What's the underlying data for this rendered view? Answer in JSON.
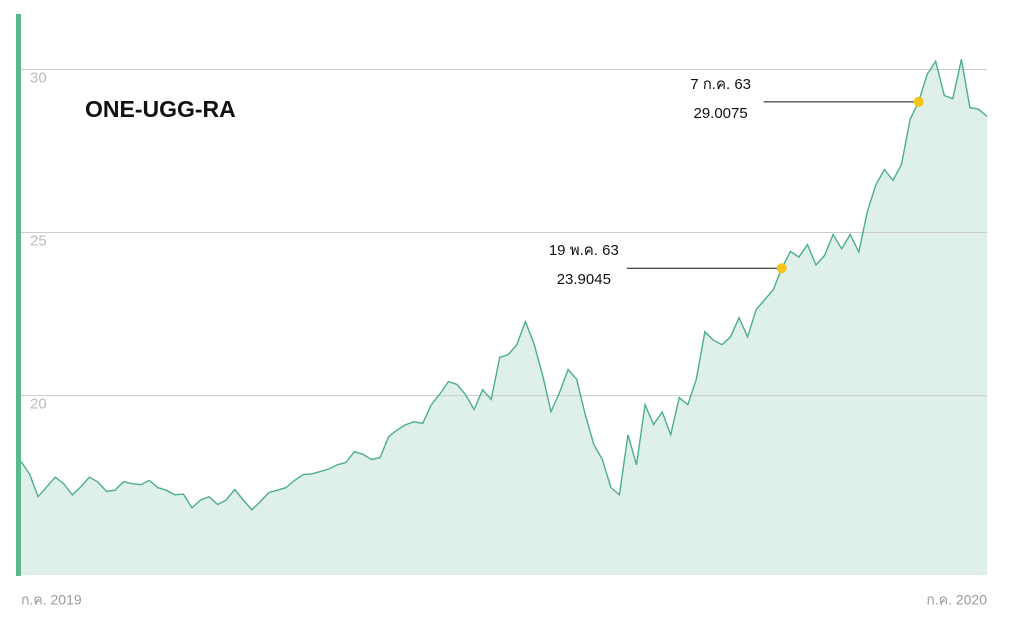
{
  "chart_data": {
    "type": "area",
    "title": "ONE-UGG-RA",
    "categories": [
      "ก.ค. 2019",
      null,
      null,
      null,
      null,
      null,
      null,
      null,
      null,
      null,
      null,
      null,
      null,
      null,
      null,
      null,
      null,
      null,
      null,
      null,
      null,
      null,
      null,
      null,
      null,
      null,
      null,
      null,
      null,
      null,
      null,
      null,
      null,
      null,
      null,
      null,
      null,
      null,
      null,
      null,
      null,
      null,
      null,
      null,
      null,
      null,
      null,
      null,
      null,
      null,
      null,
      null,
      null,
      null,
      null,
      null,
      null,
      null,
      null,
      null,
      null,
      null,
      null,
      null,
      null,
      null,
      null,
      null,
      null,
      null,
      null,
      null,
      null,
      null,
      null,
      null,
      null,
      null,
      null,
      null,
      null,
      null,
      null,
      null,
      null,
      null,
      null,
      null,
      null,
      null,
      null,
      null,
      null,
      null,
      null,
      null,
      null,
      null,
      null,
      null,
      null,
      null,
      null,
      null,
      null,
      null,
      null,
      null,
      null,
      null,
      null,
      null,
      null,
      "ก.ค. 2020"
    ],
    "values": [
      17.98,
      17.6,
      16.9,
      17.2,
      17.5,
      17.3,
      16.96,
      17.2,
      17.5,
      17.35,
      17.06,
      17.1,
      17.36,
      17.3,
      17.27,
      17.4,
      17.18,
      17.1,
      16.96,
      16.98,
      16.56,
      16.8,
      16.9,
      16.66,
      16.8,
      17.12,
      16.8,
      16.5,
      16.75,
      17.03,
      17.1,
      17.18,
      17.4,
      17.58,
      17.6,
      17.67,
      17.75,
      17.88,
      17.95,
      18.28,
      18.2,
      18.04,
      18.1,
      18.74,
      18.95,
      19.11,
      19.2,
      19.15,
      19.72,
      20.05,
      20.43,
      20.34,
      20.03,
      19.57,
      20.18,
      19.88,
      21.17,
      21.26,
      21.56,
      22.27,
      21.6,
      20.64,
      19.51,
      20.1,
      20.8,
      20.5,
      19.42,
      18.5,
      18.04,
      17.18,
      16.96,
      18.8,
      17.88,
      19.72,
      19.11,
      19.5,
      18.8,
      19.94,
      19.72,
      20.5,
      21.96,
      21.7,
      21.56,
      21.8,
      22.39,
      21.8,
      22.64,
      22.94,
      23.25,
      23.9045,
      24.42,
      24.25,
      24.63,
      24.0,
      24.3,
      24.94,
      24.5,
      24.94,
      24.4,
      25.64,
      26.47,
      26.93,
      26.6,
      27.09,
      28.47,
      29.0075,
      29.85,
      30.25,
      29.2,
      29.1,
      30.31,
      28.83,
      28.78,
      28.56
    ],
    "color": "#4caf85",
    "fill": "#dff0ea",
    "marker_color": "#f5c518",
    "ylim": [
      14.5,
      31.7
    ],
    "yticks": [
      20,
      25,
      30
    ],
    "grid": true,
    "annotations": [
      {
        "label": "19 พ.ค. 63",
        "value": 23.9045
      },
      {
        "label": "7 ก.ค. 63",
        "value": 29.0075
      }
    ]
  }
}
